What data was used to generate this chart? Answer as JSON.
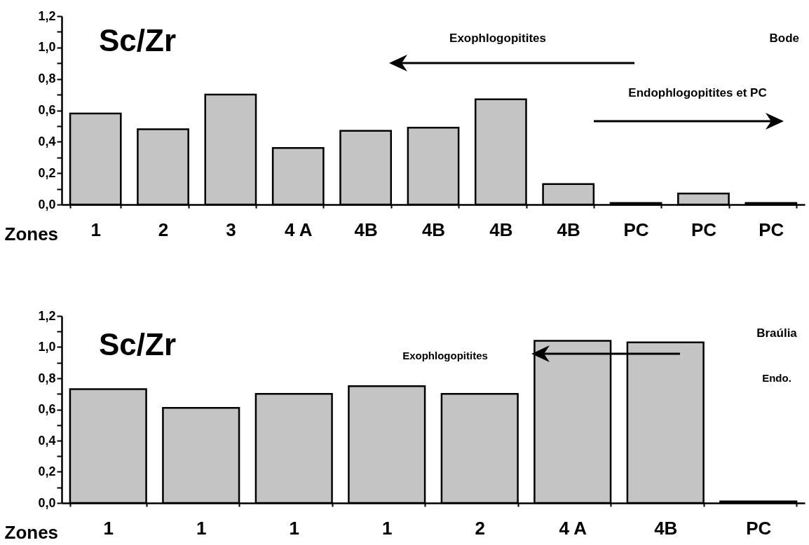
{
  "chart_data": [
    {
      "type": "bar",
      "xlabel": "Zones",
      "categories": [
        "1",
        "2",
        "3",
        "4 A",
        "4B",
        "4B",
        "4B",
        "4B",
        "PC",
        "PC",
        "PC"
      ],
      "values": [
        0.58,
        0.48,
        0.7,
        0.36,
        0.47,
        0.49,
        0.67,
        0.13,
        0.01,
        0.07,
        0.01
      ],
      "color": "#c4c4c4",
      "ylim": [
        0,
        1.2
      ],
      "yticks": [
        {
          "value": 0,
          "label": "0,0"
        },
        {
          "value": 0.1,
          "label": null
        },
        {
          "value": 0.2,
          "label": "0,2"
        },
        {
          "value": 0.3,
          "label": null
        },
        {
          "value": 0.4,
          "label": "0,4"
        },
        {
          "value": 0.5,
          "label": null
        },
        {
          "value": 0.6,
          "label": "0,6"
        },
        {
          "value": 0.7,
          "label": null
        },
        {
          "value": 0.8,
          "label": "0,8"
        },
        {
          "value": 0.9,
          "label": null
        },
        {
          "value": 1.0,
          "label": "1,0"
        },
        {
          "value": 1.1,
          "label": null
        },
        {
          "value": 1.2,
          "label": "1,2"
        }
      ],
      "annotations": [
        "Sc/Zr",
        "Exophlogopitites",
        "Bode",
        "Endophlogopitites et PC"
      ]
    },
    {
      "type": "bar",
      "xlabel": "Zones",
      "categories": [
        "1",
        "1",
        "1",
        "1",
        "2",
        "4 A",
        "4B",
        "PC"
      ],
      "values": [
        0.73,
        0.61,
        0.7,
        0.75,
        0.7,
        1.04,
        1.03,
        0.01
      ],
      "color": "#c4c4c4",
      "ylim": [
        0,
        1.2
      ],
      "yticks": [
        {
          "value": 0,
          "label": "0,0"
        },
        {
          "value": 0.1,
          "label": null
        },
        {
          "value": 0.2,
          "label": "0,2"
        },
        {
          "value": 0.3,
          "label": null
        },
        {
          "value": 0.4,
          "label": "0,4"
        },
        {
          "value": 0.5,
          "label": null
        },
        {
          "value": 0.6,
          "label": "0,6"
        },
        {
          "value": 0.7,
          "label": null
        },
        {
          "value": 0.8,
          "label": "0,8"
        },
        {
          "value": 0.9,
          "label": null
        },
        {
          "value": 1.0,
          "label": "1,0"
        },
        {
          "value": 1.1,
          "label": null
        },
        {
          "value": 1.2,
          "label": "1,2"
        }
      ],
      "annotations": [
        "Sc/Zr",
        "Exophlogopitites",
        "Braúlia",
        "Endo."
      ]
    }
  ]
}
